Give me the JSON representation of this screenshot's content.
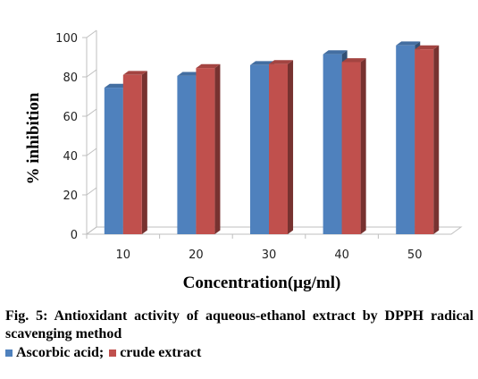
{
  "chart_data": {
    "type": "bar",
    "categories": [
      "10",
      "20",
      "30",
      "40",
      "50"
    ],
    "series": [
      {
        "name": "Ascorbic acid",
        "values": [
          74.5,
          80.5,
          86,
          91.5,
          96
        ],
        "color": "#4F81BD"
      },
      {
        "name": "crude extract",
        "values": [
          81,
          84.5,
          86.5,
          87.5,
          94
        ],
        "color": "#C0504D"
      }
    ],
    "ylabel": "% inhibition",
    "xlabel": "Concentration(µg/ml)",
    "ylim": [
      0,
      100
    ],
    "yticks": [
      0,
      20,
      40,
      60,
      80,
      100
    ],
    "grid": false,
    "style": "3d-column"
  },
  "caption": "Fig. 5: Antioxidant activity of aqueous-ethanol extract by DPPH radical scavenging method",
  "legend": {
    "items": [
      "Ascorbic acid;",
      "crude extract"
    ],
    "colors": [
      "#4F81BD",
      "#C0504D"
    ]
  }
}
